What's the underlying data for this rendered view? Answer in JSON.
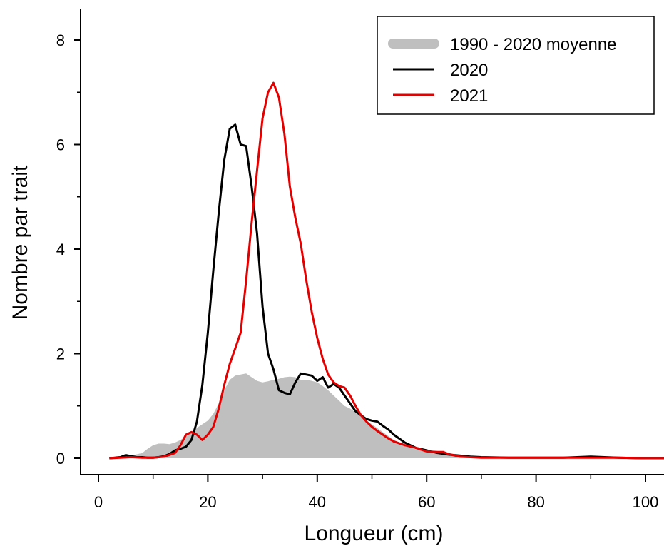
{
  "chart_data": {
    "type": "line",
    "title": "",
    "xlabel": "Longueur (cm)",
    "ylabel": "Nombre par trait",
    "xlim": [
      0,
      104
    ],
    "ylim": [
      0,
      8.5
    ],
    "xticks": [
      0,
      20,
      40,
      60,
      80,
      100
    ],
    "xtick_labels": [
      "0",
      "20",
      "40",
      "60",
      "80",
      "100"
    ],
    "yticks": [
      0,
      2,
      4,
      6,
      8
    ],
    "ytick_labels": [
      "0",
      "2",
      "4",
      "6",
      "8"
    ],
    "grid": false,
    "legend_position": "top-right",
    "series": [
      {
        "name": "1990 - 2020 moyenne",
        "style": "area",
        "color": "#bfbfbf",
        "x": [
          2,
          4,
          6,
          8,
          9,
          10,
          11,
          12,
          13,
          14,
          15,
          16,
          17,
          18,
          19,
          20,
          21,
          22,
          23,
          24,
          25,
          26,
          27,
          28,
          29,
          30,
          31,
          32,
          33,
          34,
          35,
          36,
          37,
          38,
          39,
          40,
          41,
          42,
          43,
          44,
          45,
          46,
          47,
          48,
          49,
          50,
          52,
          54,
          56,
          58,
          60,
          62,
          64,
          66,
          68,
          70,
          75,
          80,
          85,
          90,
          95,
          100,
          104
        ],
        "y": [
          0,
          0.02,
          0.05,
          0.1,
          0.18,
          0.25,
          0.28,
          0.28,
          0.27,
          0.3,
          0.35,
          0.42,
          0.5,
          0.58,
          0.65,
          0.72,
          0.85,
          1.05,
          1.3,
          1.5,
          1.58,
          1.6,
          1.62,
          1.55,
          1.48,
          1.45,
          1.47,
          1.5,
          1.52,
          1.55,
          1.56,
          1.55,
          1.5,
          1.5,
          1.48,
          1.45,
          1.38,
          1.3,
          1.2,
          1.1,
          1.0,
          0.95,
          0.88,
          0.8,
          0.72,
          0.65,
          0.5,
          0.35,
          0.25,
          0.17,
          0.12,
          0.08,
          0.05,
          0.04,
          0.03,
          0.02,
          0.01,
          0.01,
          0.01,
          0.01,
          0.01,
          0,
          0
        ]
      },
      {
        "name": "2020",
        "style": "line",
        "color": "#000000",
        "x": [
          2,
          4,
          5,
          6,
          7,
          8,
          9,
          10,
          11,
          12,
          13,
          14,
          15,
          16,
          17,
          18,
          19,
          20,
          21,
          22,
          23,
          24,
          25,
          26,
          27,
          28,
          29,
          30,
          31,
          32,
          33,
          34,
          35,
          36,
          37,
          38,
          39,
          40,
          41,
          42,
          43,
          44,
          45,
          46,
          47,
          48,
          49,
          50,
          51,
          52,
          53,
          54,
          56,
          58,
          60,
          62,
          64,
          66,
          68,
          70,
          75,
          80,
          85,
          90,
          95,
          100,
          104
        ],
        "y": [
          0,
          0.02,
          0.06,
          0.04,
          0.02,
          0.02,
          0.01,
          0.01,
          0.02,
          0.04,
          0.08,
          0.15,
          0.18,
          0.22,
          0.35,
          0.7,
          1.4,
          2.4,
          3.6,
          4.7,
          5.7,
          6.3,
          6.38,
          6.0,
          5.97,
          5.2,
          4.3,
          2.9,
          2.0,
          1.7,
          1.3,
          1.25,
          1.22,
          1.45,
          1.62,
          1.6,
          1.58,
          1.48,
          1.55,
          1.35,
          1.42,
          1.35,
          1.2,
          1.05,
          0.9,
          0.82,
          0.75,
          0.72,
          0.7,
          0.62,
          0.55,
          0.45,
          0.3,
          0.2,
          0.15,
          0.1,
          0.07,
          0.05,
          0.03,
          0.02,
          0.01,
          0.01,
          0.01,
          0.03,
          0.01,
          0,
          0
        ]
      },
      {
        "name": "2021",
        "style": "line",
        "color": "#e30000",
        "x": [
          2,
          4,
          6,
          8,
          10,
          12,
          14,
          15,
          16,
          17,
          18,
          19,
          20,
          21,
          22,
          23,
          24,
          25,
          26,
          27,
          28,
          29,
          30,
          31,
          32,
          33,
          34,
          35,
          36,
          37,
          38,
          39,
          40,
          41,
          42,
          43,
          44,
          45,
          46,
          47,
          48,
          49,
          50,
          51,
          52,
          53,
          54,
          56,
          58,
          60,
          62,
          63,
          64,
          66,
          68,
          70,
          75,
          80,
          85,
          90,
          95,
          100,
          104
        ],
        "y": [
          0,
          0.01,
          0.02,
          0.01,
          0.01,
          0.03,
          0.1,
          0.25,
          0.45,
          0.5,
          0.45,
          0.35,
          0.45,
          0.6,
          0.95,
          1.4,
          1.8,
          2.1,
          2.4,
          3.4,
          4.5,
          5.5,
          6.5,
          7.0,
          7.18,
          6.9,
          6.2,
          5.2,
          4.6,
          4.1,
          3.4,
          2.8,
          2.3,
          1.9,
          1.6,
          1.45,
          1.38,
          1.35,
          1.2,
          1.0,
          0.82,
          0.7,
          0.6,
          0.52,
          0.45,
          0.38,
          0.32,
          0.25,
          0.2,
          0.13,
          0.12,
          0.12,
          0.08,
          0.03,
          0.02,
          0.01,
          0.01,
          0.01,
          0.01,
          0.01,
          0.01,
          0,
          0
        ]
      }
    ]
  }
}
